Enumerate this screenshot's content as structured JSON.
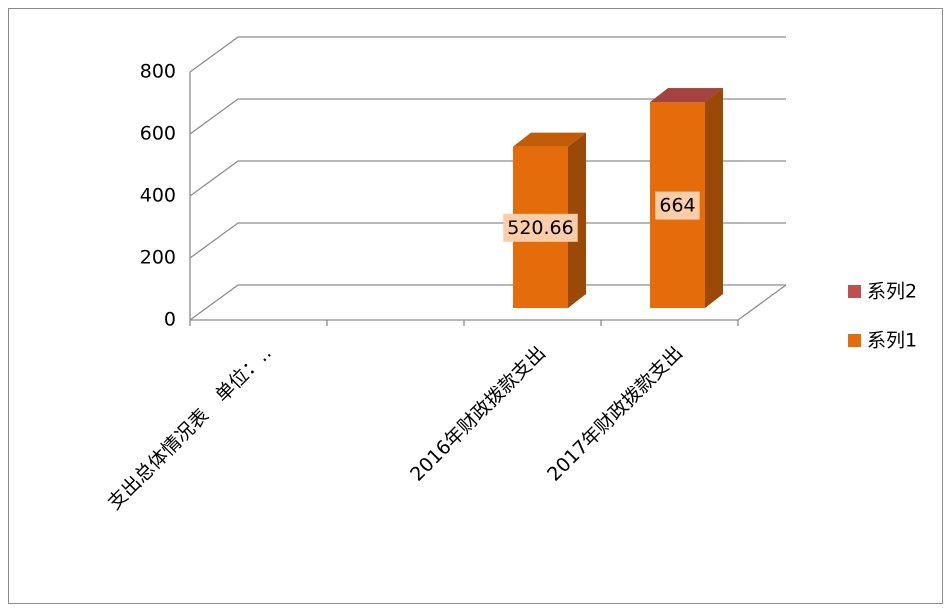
{
  "chart_data": {
    "type": "bar3d_stacked",
    "categories": [
      "支出总体情况表　单位：‥",
      null,
      "2016年财政拨款支出",
      "2017年财政拨款支出"
    ],
    "series": [
      {
        "name": "系列1",
        "color": "#E46C0A",
        "values": [
          null,
          null,
          520.66,
          664
        ]
      },
      {
        "name": "系列2",
        "color": "#C0504D",
        "values": [
          null,
          null,
          null,
          0
        ]
      }
    ],
    "ylim": [
      0,
      800
    ],
    "yticks": [
      0,
      200,
      400,
      600,
      800
    ],
    "grid": true,
    "legend": "right"
  }
}
